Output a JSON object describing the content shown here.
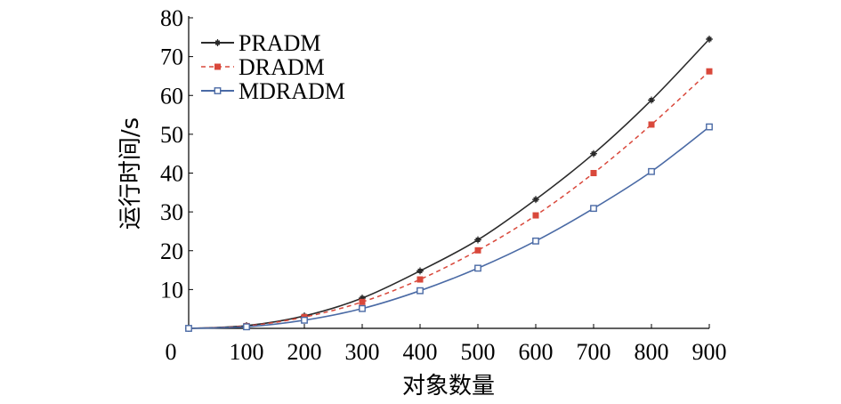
{
  "chart_data": {
    "type": "line",
    "xlabel": "对象数量",
    "ylabel": "运行时间/s",
    "x": [
      0,
      100,
      200,
      300,
      400,
      500,
      600,
      700,
      800,
      900
    ],
    "x_tick_labels": [
      "0",
      "100",
      "200",
      "300",
      "400",
      "500",
      "600",
      "700",
      "800",
      "900"
    ],
    "y_tick_labels": [
      "10",
      "20",
      "30",
      "40",
      "50",
      "60",
      "70",
      "80"
    ],
    "xlim": [
      0,
      900
    ],
    "ylim": [
      0,
      80
    ],
    "grid": false,
    "legend_position": "top-left",
    "series": [
      {
        "name": "PRADM",
        "color": "#2b2b2b",
        "line_style": "solid",
        "marker": "cross",
        "values": [
          0,
          0.7,
          3.2,
          7.8,
          14.8,
          22.8,
          33.2,
          45.0,
          58.8,
          74.5
        ]
      },
      {
        "name": "DRADM",
        "color": "#d9483b",
        "line_style": "dashed",
        "marker": "filled-square",
        "values": [
          0,
          0.6,
          2.9,
          6.8,
          12.6,
          20.1,
          29.1,
          40.0,
          52.5,
          66.2
        ]
      },
      {
        "name": "MDRADM",
        "color": "#4a6aa5",
        "line_style": "solid",
        "marker": "open-square",
        "values": [
          0,
          0.4,
          2.1,
          5.1,
          9.7,
          15.5,
          22.5,
          30.9,
          40.4,
          51.9
        ]
      }
    ]
  }
}
